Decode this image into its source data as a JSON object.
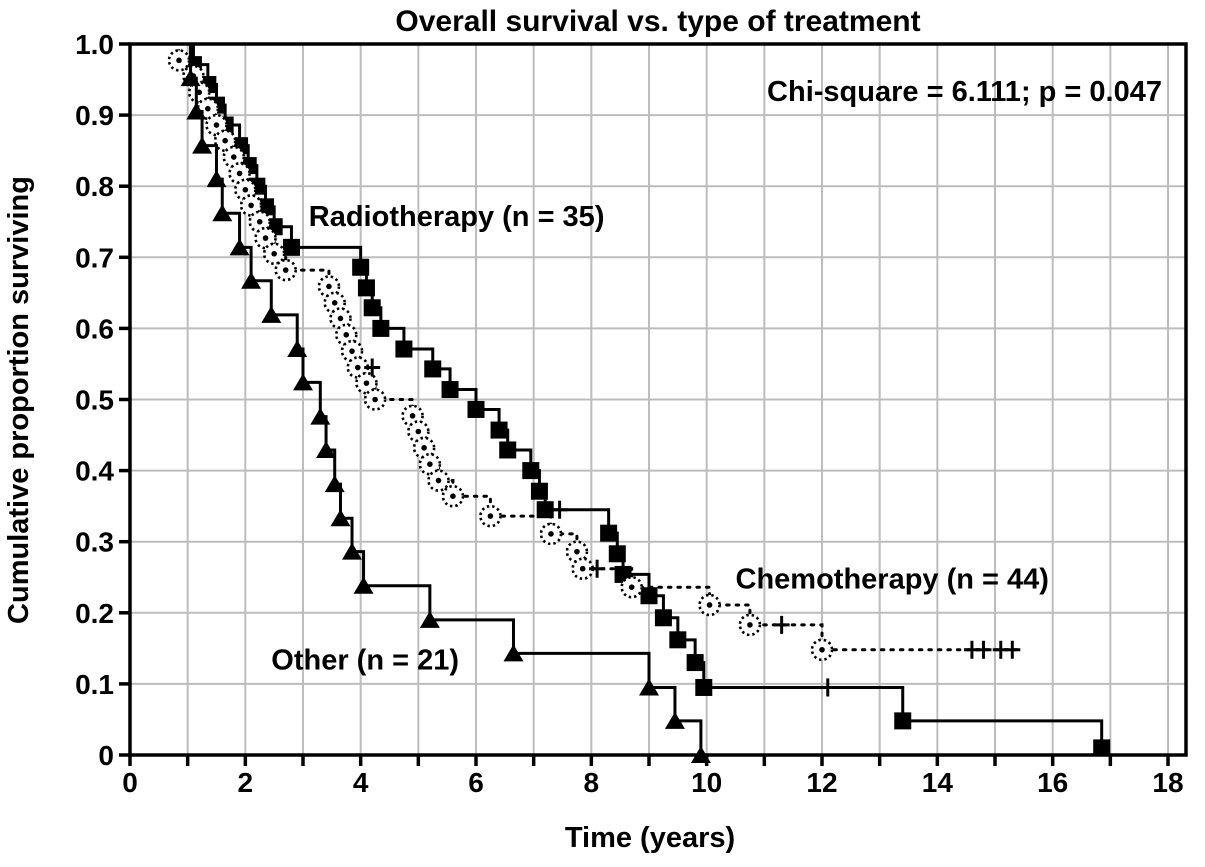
{
  "chart_data": {
    "type": "line",
    "subtype": "kaplan-meier-step",
    "title": "Overall survival vs. type of treatment",
    "annotation": "Chi-square = 6.111; p = 0.047",
    "grid": true,
    "colors": {
      "foreground": "#000000",
      "gridline": "#bdbdbd",
      "background": "#ffffff"
    },
    "x_axis": {
      "label": "Time (years)",
      "range": [
        0,
        18
      ],
      "tick_step_minor": 1,
      "major_ticks": [
        {
          "t": 0,
          "label": "0"
        },
        {
          "t": 2,
          "label": "2"
        },
        {
          "t": 4,
          "label": "4"
        },
        {
          "t": 6,
          "label": "6"
        },
        {
          "t": 8,
          "label": "8"
        },
        {
          "t": 10,
          "label": "10"
        },
        {
          "t": 12,
          "label": "12"
        },
        {
          "t": 14,
          "label": "14"
        },
        {
          "t": 16,
          "label": "16"
        },
        {
          "t": 18,
          "label": "18"
        }
      ]
    },
    "y_axis": {
      "label": "Cumulative proportion surviving",
      "range": [
        0,
        1.0
      ],
      "ticks": [
        {
          "v": 1.0,
          "label": "1.0"
        },
        {
          "v": 0.9,
          "label": "0.9"
        },
        {
          "v": 0.8,
          "label": "0.8"
        },
        {
          "v": 0.7,
          "label": "0.7"
        },
        {
          "v": 0.6,
          "label": "0.6"
        },
        {
          "v": 0.5,
          "label": "0.5"
        },
        {
          "v": 0.4,
          "label": "0.4"
        },
        {
          "v": 0.3,
          "label": "0.3"
        },
        {
          "v": 0.2,
          "label": "0.2"
        },
        {
          "v": 0.1,
          "label": "0.1"
        },
        {
          "v": 0,
          "label": "0"
        }
      ]
    },
    "series": [
      {
        "name": "radiotherapy",
        "label": "Radiotherapy (n = 35)",
        "n": 35,
        "marker": "filled-square",
        "line_style": "solid",
        "label_pos": [
          3.1,
          0.758
        ],
        "start_t": 0.85,
        "steps": [
          [
            1.1,
            0.971
          ],
          [
            1.35,
            0.943
          ],
          [
            1.5,
            0.914
          ],
          [
            1.65,
            0.886
          ],
          [
            1.9,
            0.857
          ],
          [
            2.05,
            0.829
          ],
          [
            2.2,
            0.8
          ],
          [
            2.35,
            0.771
          ],
          [
            2.5,
            0.743
          ],
          [
            2.8,
            0.714
          ],
          [
            4.0,
            0.686
          ],
          [
            4.1,
            0.657
          ],
          [
            4.2,
            0.629
          ],
          [
            4.35,
            0.6
          ],
          [
            4.75,
            0.571
          ],
          [
            5.25,
            0.543
          ],
          [
            5.55,
            0.514
          ],
          [
            6.0,
            0.486
          ],
          [
            6.4,
            0.457
          ],
          [
            6.55,
            0.429
          ],
          [
            6.95,
            0.4
          ],
          [
            7.1,
            0.371
          ],
          [
            7.2,
            0.345
          ],
          [
            8.3,
            0.312
          ],
          [
            8.45,
            0.283
          ],
          [
            8.55,
            0.254
          ],
          [
            9.0,
            0.224
          ],
          [
            9.25,
            0.193
          ],
          [
            9.5,
            0.162
          ],
          [
            9.8,
            0.13
          ],
          [
            9.95,
            0.095
          ],
          [
            13.4,
            0.048
          ],
          [
            16.85,
            0.01
          ]
        ],
        "censored": [
          [
            7.45,
            0.345
          ],
          [
            12.1,
            0.095
          ]
        ],
        "end_t": 16.95
      },
      {
        "name": "chemotherapy",
        "label": "Chemotherapy (n = 44)",
        "n": 44,
        "marker": "open-circle-dot",
        "line_style": "dotted",
        "label_pos": [
          10.5,
          0.248
        ],
        "start_t": 0.8,
        "steps": [
          [
            0.85,
            0.977
          ],
          [
            1.1,
            0.955
          ],
          [
            1.2,
            0.932
          ],
          [
            1.35,
            0.909
          ],
          [
            1.5,
            0.886
          ],
          [
            1.65,
            0.864
          ],
          [
            1.8,
            0.841
          ],
          [
            1.9,
            0.818
          ],
          [
            2.0,
            0.795
          ],
          [
            2.1,
            0.773
          ],
          [
            2.25,
            0.75
          ],
          [
            2.35,
            0.727
          ],
          [
            2.5,
            0.705
          ],
          [
            2.7,
            0.682
          ],
          [
            3.45,
            0.659
          ],
          [
            3.55,
            0.636
          ],
          [
            3.65,
            0.614
          ],
          [
            3.75,
            0.591
          ],
          [
            3.85,
            0.568
          ],
          [
            3.95,
            0.545
          ],
          [
            4.1,
            0.523
          ],
          [
            4.25,
            0.5
          ],
          [
            4.9,
            0.477
          ],
          [
            5.0,
            0.455
          ],
          [
            5.1,
            0.432
          ],
          [
            5.2,
            0.409
          ],
          [
            5.35,
            0.386
          ],
          [
            5.6,
            0.364
          ],
          [
            6.25,
            0.336
          ],
          [
            7.3,
            0.311
          ],
          [
            7.75,
            0.286
          ],
          [
            7.85,
            0.262
          ],
          [
            8.7,
            0.236
          ],
          [
            10.05,
            0.211
          ],
          [
            10.75,
            0.183
          ],
          [
            12.0,
            0.148
          ]
        ],
        "censored": [
          [
            4.2,
            0.545
          ],
          [
            8.1,
            0.262
          ],
          [
            11.3,
            0.183
          ],
          [
            14.6,
            0.148
          ],
          [
            14.8,
            0.148
          ],
          [
            15.1,
            0.148
          ],
          [
            15.3,
            0.148
          ]
        ],
        "end_t": 15.45
      },
      {
        "name": "other",
        "label": "Other (n = 21)",
        "n": 21,
        "marker": "filled-triangle",
        "line_style": "solid",
        "label_pos": [
          2.45,
          0.134
        ],
        "start_t": 0.9,
        "steps": [
          [
            1.05,
            0.952
          ],
          [
            1.15,
            0.905
          ],
          [
            1.25,
            0.857
          ],
          [
            1.5,
            0.81
          ],
          [
            1.6,
            0.762
          ],
          [
            1.9,
            0.714
          ],
          [
            2.1,
            0.667
          ],
          [
            2.45,
            0.619
          ],
          [
            2.9,
            0.571
          ],
          [
            3.0,
            0.524
          ],
          [
            3.3,
            0.476
          ],
          [
            3.4,
            0.429
          ],
          [
            3.55,
            0.381
          ],
          [
            3.65,
            0.333
          ],
          [
            3.85,
            0.286
          ],
          [
            4.05,
            0.238
          ],
          [
            5.2,
            0.19
          ],
          [
            6.65,
            0.143
          ],
          [
            9.0,
            0.095
          ],
          [
            9.45,
            0.048
          ],
          [
            9.9,
            0.0
          ]
        ],
        "censored": [],
        "end_t": 9.9
      }
    ]
  }
}
